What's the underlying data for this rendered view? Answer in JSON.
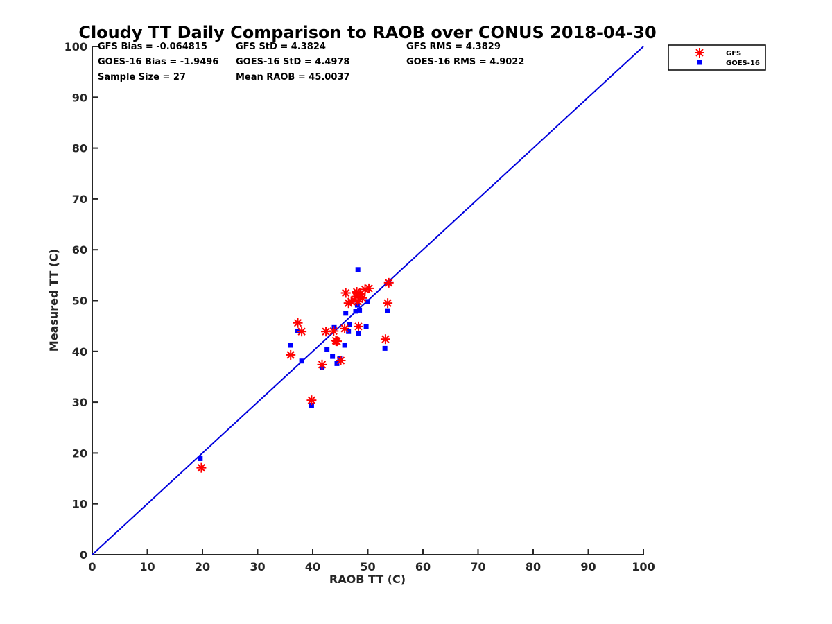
{
  "chart_data": {
    "type": "scatter",
    "title": "Cloudy TT Daily Comparison to RAOB over CONUS 2018-04-30",
    "xlabel": "RAOB TT (C)",
    "ylabel": "Measured TT (C)",
    "xlim": [
      0,
      100
    ],
    "ylim": [
      0,
      100
    ],
    "xticks": [
      "0",
      "10",
      "20",
      "30",
      "40",
      "50",
      "60",
      "70",
      "80",
      "90",
      "100"
    ],
    "yticks": [
      "0",
      "10",
      "20",
      "30",
      "40",
      "50",
      "60",
      "70",
      "80",
      "90",
      "100"
    ],
    "grid": false,
    "legend_position": "outside-top-right",
    "reference_line": {
      "x": [
        0,
        100
      ],
      "y": [
        0,
        100
      ],
      "color": "#0000dd"
    },
    "stats": [
      "GFS Bias = -0.064815",
      "GFS StD = 4.3824",
      "GFS RMS = 4.3829",
      "GOES-16 Bias = -1.9496",
      "GOES-16 StD = 4.4978",
      "GOES-16 RMS = 4.9022",
      "Sample Size = 27",
      "Mean RAOB = 45.0037"
    ],
    "series": [
      {
        "name": "GFS",
        "marker": "asterisk",
        "color": "#ff0000",
        "x": [
          19.8,
          36.0,
          37.3,
          38.0,
          39.8,
          41.7,
          42.4,
          43.8,
          44.2,
          44.4,
          45.1,
          45.8,
          46.0,
          46.5,
          47.0,
          47.5,
          47.9,
          48.0,
          48.2,
          48.3,
          48.6,
          49.0,
          49.5,
          50.2,
          53.2,
          53.6,
          53.8
        ],
        "y": [
          17.1,
          39.3,
          45.6,
          43.9,
          30.4,
          37.4,
          43.9,
          44.0,
          42.1,
          42.0,
          38.2,
          44.5,
          51.5,
          49.5,
          49.8,
          50.1,
          50.8,
          51.7,
          49.8,
          44.9,
          51.3,
          50.5,
          52.2,
          52.4,
          42.4,
          49.5,
          53.5
        ]
      },
      {
        "name": "GOES-16",
        "marker": "square",
        "color": "#0000ff",
        "x": [
          19.6,
          36.0,
          37.3,
          38.0,
          39.8,
          41.7,
          42.6,
          43.6,
          43.9,
          44.4,
          44.9,
          45.8,
          46.0,
          46.5,
          46.7,
          47.8,
          48.1,
          48.2,
          48.3,
          48.5,
          49.7,
          50.0,
          53.1,
          53.6,
          53.8
        ],
        "y": [
          18.9,
          41.2,
          44.0,
          38.1,
          29.4,
          36.8,
          40.4,
          39.0,
          44.7,
          37.6,
          38.6,
          41.2,
          47.5,
          43.9,
          45.3,
          47.9,
          49.1,
          56.1,
          43.5,
          48.1,
          44.9,
          49.8,
          40.6,
          48.0,
          53.5
        ]
      }
    ]
  }
}
